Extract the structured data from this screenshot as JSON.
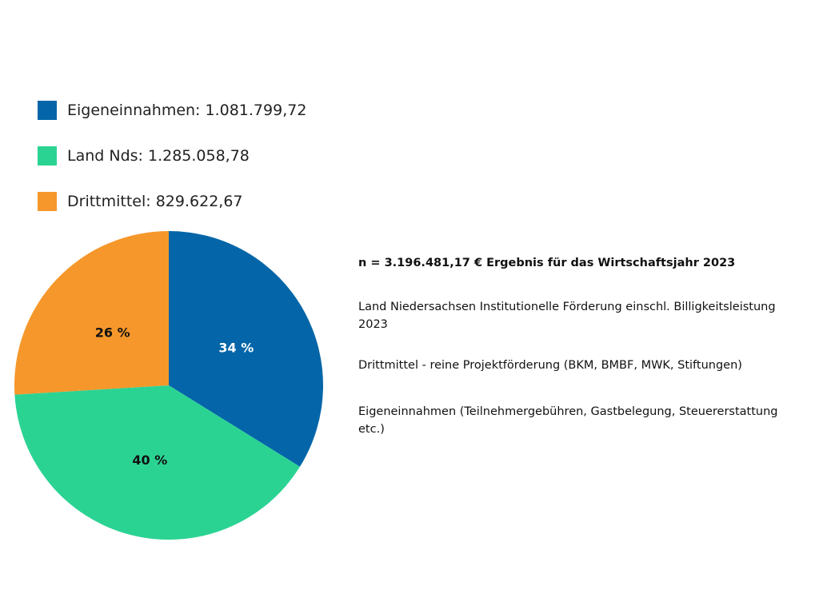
{
  "chart_data": {
    "type": "pie",
    "categories": [
      "Eigeneinnahmen",
      "Land Nds",
      "Drittmittel"
    ],
    "values": [
      1081799.72,
      1285058.78,
      829622.67
    ],
    "percent_labels": [
      "34 %",
      "40 %",
      "26 %"
    ],
    "colors": [
      "#0466a8",
      "#2bd393",
      "#f6972b"
    ],
    "label_colors": [
      "#ffffff",
      "#111111",
      "#111111"
    ],
    "legend": {
      "placement": "top-left",
      "entries": [
        "Eigeneinnahmen: 1.081.799,72",
        "Land Nds: 1.285.058,78",
        "Drittmittel: 829.622,67"
      ]
    }
  },
  "notes": {
    "total": "n = 3.196.481,17 € Ergebnis für das Wirtschaftsjahr 2023",
    "land": "Land Niedersachsen Institutionelle Förderung einschl. Billigkeitsleistung 2023",
    "drittmittel": "Drittmittel - reine Projektförderung (BKM, BMBF, MWK, Stiftungen)",
    "eigen": "Eigeneinnahmen (Teilnehmergebühren, Gastbelegung, Steuererstattung etc.)"
  }
}
